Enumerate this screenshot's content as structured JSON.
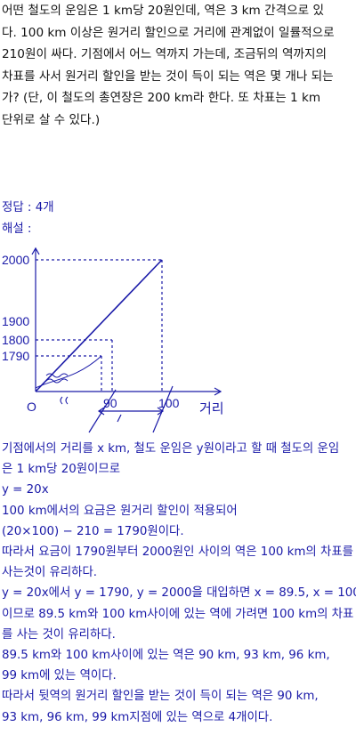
{
  "question": {
    "lines": [
      "어떤 철도의 운임은 1 km당 20원인데, 역은 3 km 간격으로 있",
      "다. 100 km 이상은 원거리 할인으로 거리에 관계없이 일률적으로",
      "210원이 싸다. 기점에서 어느 역까지 가는데, 조금뒤의 역까지의",
      "차표를 사서 원거리 할인을 받는 것이 득이 되는 역은 몇 개나 되는",
      "가? (단, 이 철도의 총연장은 200 km라 한다. 또 차표는 1 km",
      "단위로 살 수 있다.)"
    ]
  },
  "answer": {
    "label": "정답 :",
    "value": "4개"
  },
  "solution_label": "해설 :",
  "graph": {
    "y_ticks": [
      "2000",
      "1900",
      "1800",
      "1790"
    ],
    "origin": "O",
    "x_ticks": [
      "90",
      "100"
    ],
    "x_axis_label": "거리"
  },
  "solution": {
    "lines": [
      "기점에서의 거리를 x km, 철도 운임은 y원이라고 할 때 철도의 운임",
      "은 1 km당 20원이므로",
      "y = 20x",
      "100 km에서의 요금은 원거리 할인이 적용되어",
      "(20×100) − 210 = 1790원이다.",
      "따라서 요금이 1790원부터 2000원인 사이의 역은 100 km의 차표를",
      "사는것이 유리하다.",
      " y = 20x에서 y = 1790, y = 2000을 대입하면 x = 89.5, x = 100",
      "이므로 89.5 km와 100 km사이에 있는 역에 가려면 100 km의 차표",
      "를 사는 것이 유리하다.",
      "89.5 km와 100 km사이에 있는 역은 90 km, 93 km, 96 km,",
      "99 km에 있는 역이다.",
      "따라서 뒷역의 원거리 할인을 받는 것이 득이 되는 역은 90 km,",
      "93 km, 96 km, 99 km지점에 있는 역으로 4개이다."
    ]
  },
  "colors": {
    "question_text": "#111111",
    "solution_text": "#1a1aa8",
    "graph": "#1a1aa8"
  }
}
